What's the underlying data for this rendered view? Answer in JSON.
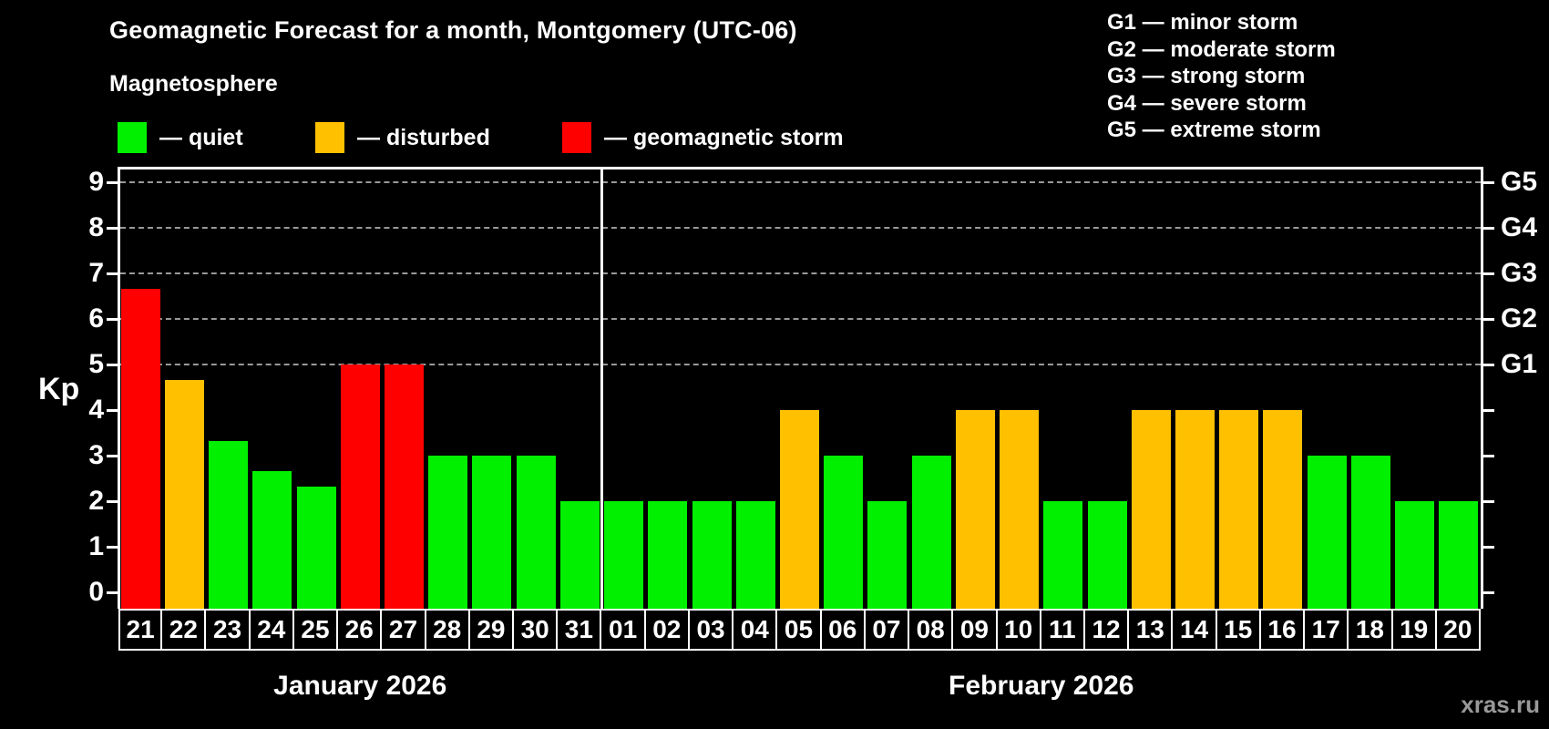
{
  "title": "Geomagnetic Forecast for a month, Montgomery (UTC-06)",
  "subtitle": "Magnetosphere",
  "legend": {
    "items": [
      {
        "key": "quiet",
        "label": "— quiet",
        "color": "#00F000",
        "x": 129
      },
      {
        "key": "disturbed",
        "label": "— disturbed",
        "color": "#FFC000",
        "x": 346
      },
      {
        "key": "storm",
        "label": "— geomagnetic storm",
        "color": "#FF0000",
        "x": 617
      }
    ]
  },
  "g_legend": [
    "G1 — minor storm",
    "G2 — moderate storm",
    "G3 — strong storm",
    "G4 — severe storm",
    "G5 — extreme storm"
  ],
  "axis": {
    "kp_label": "Kp",
    "left_ticks": [
      "0",
      "1",
      "2",
      "3",
      "4",
      "5",
      "6",
      "7",
      "8",
      "9"
    ],
    "right_tick_levels": [
      0,
      1,
      2,
      3,
      4,
      5,
      6,
      7,
      8,
      9
    ],
    "right_labels": [
      {
        "kp": 5,
        "label": "G1"
      },
      {
        "kp": 6,
        "label": "G2"
      },
      {
        "kp": 7,
        "label": "G3"
      },
      {
        "kp": 8,
        "label": "G4"
      },
      {
        "kp": 9,
        "label": "G5"
      }
    ]
  },
  "months": [
    {
      "label": "January 2026",
      "days": 11
    },
    {
      "label": "February 2026",
      "days": 20
    }
  ],
  "watermark": "xras.ru",
  "chart_data": {
    "type": "bar",
    "title": "Geomagnetic Forecast for a month, Montgomery (UTC-06)",
    "xlabel": "",
    "ylabel": "Kp",
    "ylim": [
      0,
      9.4
    ],
    "grid": "dashed horizontal at Kp 5-9",
    "gridlines_at": [
      5,
      6,
      7,
      8,
      9
    ],
    "legend_position": "top",
    "categories": [
      "21",
      "22",
      "23",
      "24",
      "25",
      "26",
      "27",
      "28",
      "29",
      "30",
      "31",
      "01",
      "02",
      "03",
      "04",
      "05",
      "06",
      "07",
      "08",
      "09",
      "10",
      "11",
      "12",
      "13",
      "14",
      "15",
      "16",
      "17",
      "18",
      "19",
      "20"
    ],
    "values": [
      6.67,
      4.67,
      3.33,
      2.67,
      2.33,
      5,
      5,
      3,
      3,
      3,
      2,
      2,
      2,
      2,
      2,
      4,
      3,
      2,
      3,
      4,
      4,
      2,
      2,
      4,
      4,
      4,
      4,
      3,
      3,
      2,
      2
    ],
    "statuses": [
      "storm",
      "disturbed",
      "quiet",
      "quiet",
      "quiet",
      "storm",
      "storm",
      "quiet",
      "quiet",
      "quiet",
      "quiet",
      "quiet",
      "quiet",
      "quiet",
      "quiet",
      "disturbed",
      "quiet",
      "quiet",
      "quiet",
      "disturbed",
      "disturbed",
      "quiet",
      "quiet",
      "disturbed",
      "disturbed",
      "disturbed",
      "disturbed",
      "quiet",
      "quiet",
      "quiet",
      "quiet"
    ],
    "colors": {
      "quiet": "#00F000",
      "disturbed": "#FFC000",
      "storm": "#FF0000"
    }
  }
}
